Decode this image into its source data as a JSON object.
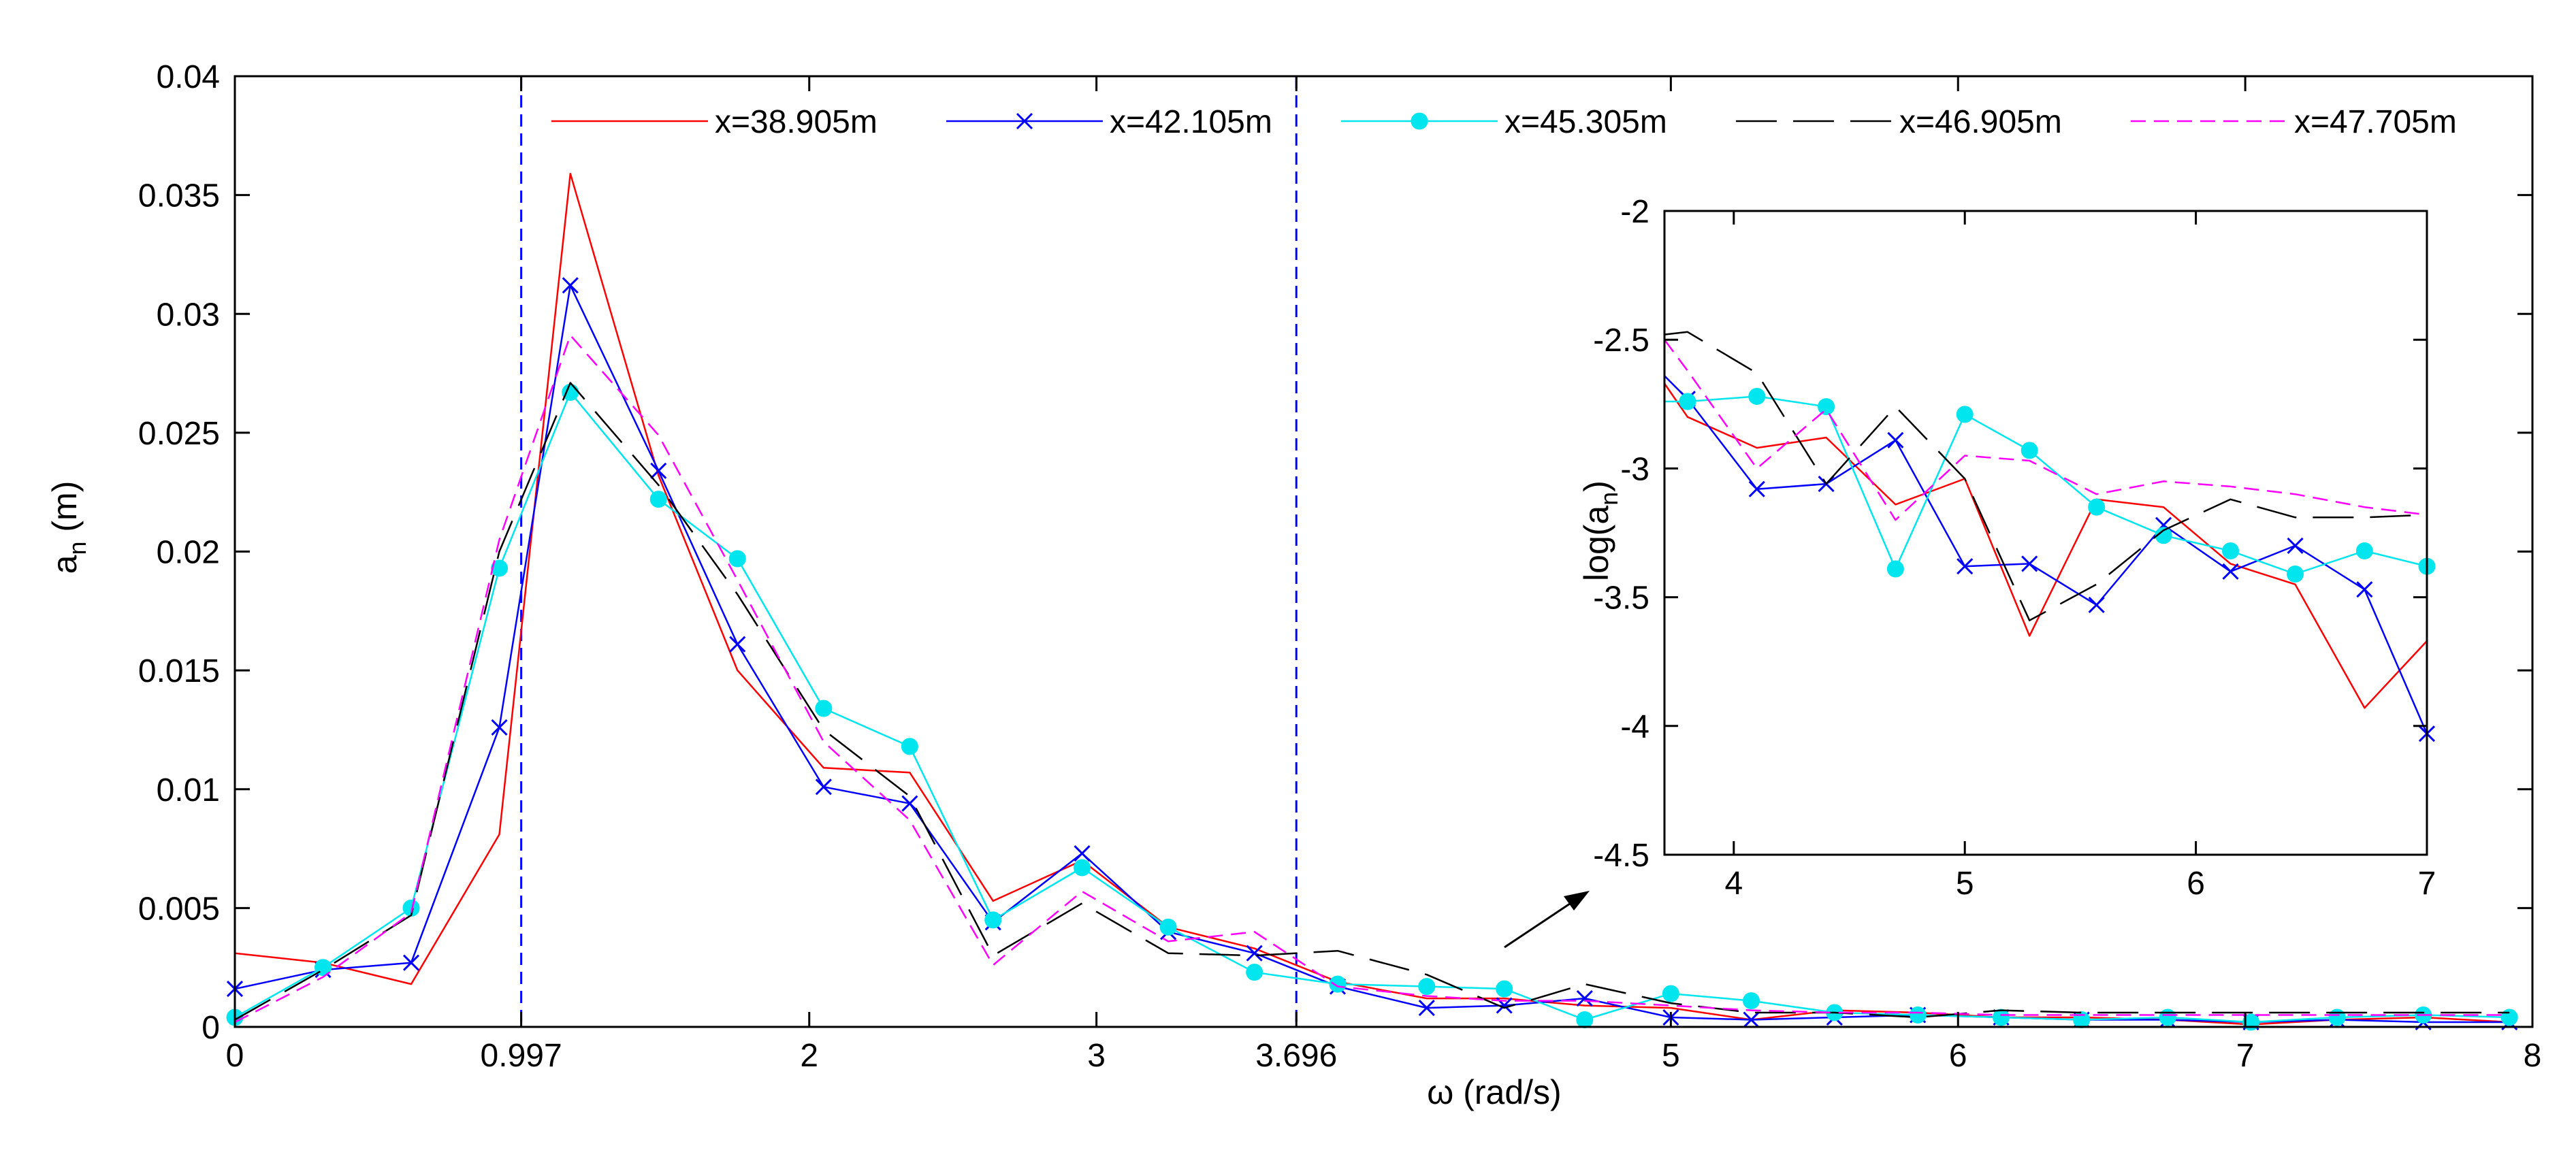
{
  "chart_data": [
    {
      "type": "line",
      "xlabel": "ω (rad/s)",
      "ylabel_main": "a",
      "ylabel_sub": "n",
      "ylabel_unit": " (m)",
      "xlim": [
        0,
        8
      ],
      "ylim": [
        0,
        0.04
      ],
      "xticks": [
        0,
        0.997,
        2,
        3,
        3.696,
        5,
        6,
        7,
        8
      ],
      "xtick_labels": [
        "0",
        "0.997",
        "2",
        "3",
        "3.696",
        "5",
        "6",
        "7",
        "8"
      ],
      "yticks": [
        0,
        0.005,
        0.01,
        0.015,
        0.02,
        0.025,
        0.03,
        0.035,
        0.04
      ],
      "ytick_labels": [
        "0",
        "0.005",
        "0.01",
        "0.015",
        "0.02",
        "0.025",
        "0.03",
        "0.035",
        "0.04"
      ],
      "vlines": [
        0.997,
        3.696
      ],
      "x": [
        0,
        0.307,
        0.614,
        0.921,
        1.168,
        1.475,
        1.75,
        2.05,
        2.35,
        2.64,
        2.95,
        3.25,
        3.55,
        3.84,
        4.15,
        4.42,
        4.7,
        5.0,
        5.28,
        5.57,
        5.86,
        6.15,
        6.43,
        6.73,
        7.02,
        7.32,
        7.62,
        7.92
      ],
      "series": [
        {
          "name": "x=38.905m",
          "color": "#ff0000",
          "style": "solid",
          "marker": "none",
          "values": [
            0.0031,
            0.0027,
            0.0018,
            0.0081,
            0.0359,
            0.0232,
            0.015,
            0.0109,
            0.0107,
            0.0053,
            0.007,
            0.0042,
            0.0033,
            0.0019,
            0.0012,
            0.0012,
            0.0009,
            0.0008,
            0.0003,
            0.0007,
            0.0006,
            0.0004,
            0.0004,
            0.0003,
            0.0001,
            0.0003,
            0.0004,
            0.0002
          ]
        },
        {
          "name": "x=42.105m",
          "color": "#0000ff",
          "style": "solid",
          "marker": "x",
          "values": [
            0.0016,
            0.0024,
            0.0027,
            0.0126,
            0.0312,
            0.0234,
            0.0161,
            0.0101,
            0.0094,
            0.0044,
            0.0073,
            0.004,
            0.0031,
            0.0017,
            0.0008,
            0.0009,
            0.0012,
            0.0004,
            0.0003,
            0.0004,
            0.0005,
            0.0004,
            0.0003,
            0.0003,
            0.0002,
            0.0003,
            0.0002,
            0.0002
          ]
        },
        {
          "name": "x=45.305m",
          "color": "#00e5ee",
          "style": "solid",
          "marker": "circle",
          "values": [
            0.0004,
            0.0025,
            0.005,
            0.0193,
            0.0267,
            0.0222,
            0.0197,
            0.0134,
            0.0118,
            0.0045,
            0.0067,
            0.0042,
            0.0023,
            0.0018,
            0.0017,
            0.0016,
            0.0003,
            0.0014,
            0.0011,
            0.0006,
            0.0005,
            0.0004,
            0.0003,
            0.0004,
            0.0002,
            0.0004,
            0.0005,
            0.0004
          ]
        },
        {
          "name": "x=46.905m",
          "color": "#000000",
          "style": "longdash",
          "marker": "none",
          "values": [
            0.0003,
            0.0024,
            0.0047,
            0.02,
            0.0271,
            0.0228,
            0.0182,
            0.0125,
            0.0097,
            0.003,
            0.0052,
            0.0031,
            0.003,
            0.0032,
            0.0022,
            0.0008,
            0.0018,
            0.001,
            0.0006,
            0.0006,
            0.0004,
            0.0007,
            0.0006,
            0.0006,
            0.0006,
            0.0006,
            0.0006,
            0.0006
          ]
        },
        {
          "name": "x=47.705m",
          "color": "#ff00ff",
          "style": "dashed",
          "marker": "none",
          "values": [
            0.0002,
            0.0021,
            0.0048,
            0.0205,
            0.0291,
            0.0249,
            0.0188,
            0.012,
            0.0087,
            0.0026,
            0.0057,
            0.0036,
            0.004,
            0.0017,
            0.0013,
            0.0011,
            0.0011,
            0.0009,
            0.0007,
            0.0006,
            0.0006,
            0.0005,
            0.0005,
            0.0005,
            0.0005,
            0.0005,
            0.0005,
            0.0005
          ]
        }
      ],
      "legend": [
        "x=38.905m",
        "x=42.105m",
        "x=45.305m",
        "x=46.905m",
        "x=47.705m"
      ],
      "legend_location": "top"
    },
    {
      "type": "line",
      "role": "inset",
      "ylabel_main": "log(a",
      "ylabel_sub": "n",
      "ylabel_tail": ")",
      "xlim": [
        3.7,
        7
      ],
      "ylim": [
        -4.5,
        -2
      ],
      "xticks": [
        4,
        5,
        6,
        7
      ],
      "xtick_labels": [
        "4",
        "5",
        "6",
        "7"
      ],
      "yticks": [
        -4.5,
        -4,
        -3.5,
        -3,
        -2.5,
        -2
      ],
      "ytick_labels": [
        "-4.5",
        "-4",
        "-3.5",
        "-3",
        "-2.5",
        "-2"
      ],
      "x": [
        3.7,
        3.8,
        4.1,
        4.4,
        4.7,
        5.0,
        5.28,
        5.57,
        5.86,
        6.15,
        6.43,
        6.73,
        7.0
      ],
      "series": [
        {
          "name": "x=38.905m",
          "values": [
            -2.67,
            -2.8,
            -2.92,
            -2.88,
            -3.14,
            -3.04,
            -3.65,
            -3.12,
            -3.15,
            -3.37,
            -3.45,
            -3.93,
            -3.67
          ]
        },
        {
          "name": "x=42.105m",
          "values": [
            -2.64,
            -2.73,
            -3.08,
            -3.06,
            -2.89,
            -3.38,
            -3.37,
            -3.53,
            -3.22,
            -3.4,
            -3.3,
            -3.47,
            -4.03
          ]
        },
        {
          "name": "x=45.305m",
          "values": [
            -2.74,
            -2.74,
            -2.72,
            -2.76,
            -3.39,
            -2.79,
            -2.93,
            -3.15,
            -3.26,
            -3.32,
            -3.41,
            -3.32,
            -3.38
          ]
        },
        {
          "name": "x=46.905m",
          "values": [
            -2.48,
            -2.47,
            -2.63,
            -3.06,
            -2.76,
            -3.04,
            -3.59,
            -3.45,
            -3.24,
            -3.12,
            -3.19,
            -3.19,
            -3.18
          ]
        },
        {
          "name": "x=47.705m",
          "values": [
            -2.5,
            -2.62,
            -3.0,
            -2.77,
            -3.2,
            -2.95,
            -2.97,
            -3.1,
            -3.05,
            -3.07,
            -3.1,
            -3.15,
            -3.18
          ]
        }
      ]
    }
  ]
}
